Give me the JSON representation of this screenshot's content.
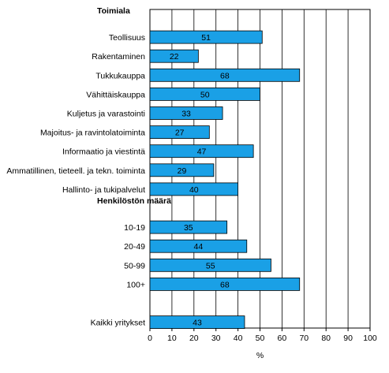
{
  "chart_data": {
    "type": "bar",
    "orientation": "horizontal",
    "xlabel": "%",
    "xlim": [
      0,
      100
    ],
    "xticks": [
      0,
      10,
      20,
      30,
      40,
      50,
      60,
      70,
      80,
      90,
      100
    ],
    "grid": "vertical",
    "bar_color": "#1aa0e6",
    "groups": [
      {
        "header": "Toimiala",
        "categories": [
          "Teollisuus",
          "Rakentaminen",
          "Tukkukauppa",
          "Vähittäiskauppa",
          "Kuljetus ja varastointi",
          "Majoitus- ja ravintolatoiminta",
          "Informaatio ja viestintä",
          "Ammatillinen, tieteell. ja tekn. toiminta",
          "Hallinto- ja tukipalvelut"
        ],
        "values": [
          51,
          22,
          68,
          50,
          33,
          27,
          47,
          29,
          40
        ]
      },
      {
        "header": "Henkilöstön määrä",
        "categories": [
          "10-19",
          "20-49",
          "50-99",
          "100+"
        ],
        "values": [
          35,
          44,
          55,
          68
        ]
      },
      {
        "header": "",
        "categories": [
          "Kaikki yritykset"
        ],
        "values": [
          43
        ]
      }
    ]
  }
}
